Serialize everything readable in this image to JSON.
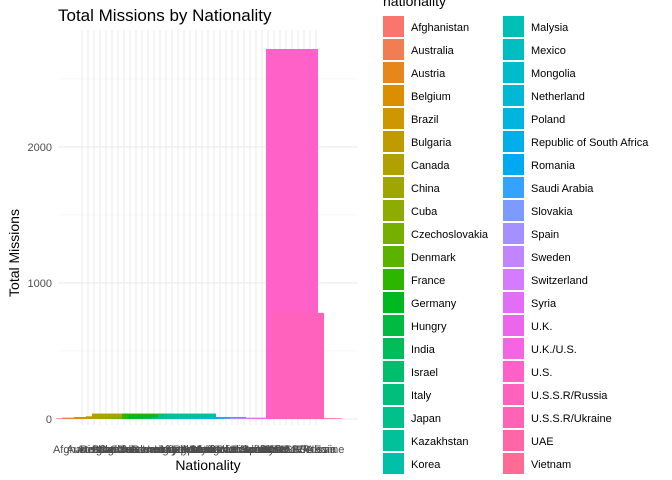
{
  "chart_data": {
    "type": "bar",
    "title": "Total Missions by Nationality",
    "xlabel": "Nationality",
    "ylabel": "Total Missions",
    "ylim": [
      0,
      2800
    ],
    "yticks": [
      0,
      1000,
      2000
    ],
    "grid": true,
    "legend": {
      "title": "nationality",
      "position": "right"
    },
    "categories": [
      "Afghanistan",
      "Australia",
      "Austria",
      "Belgium",
      "Brazil",
      "Bulgaria",
      "Canada",
      "China",
      "Cuba",
      "Czechoslovakia",
      "Denmark",
      "France",
      "Germany",
      "Hungry",
      "India",
      "Israel",
      "Italy",
      "Japan",
      "Kazakhstan",
      "Korea",
      "Malysia",
      "Mexico",
      "Mongolia",
      "Netherland",
      "Poland",
      "Republic of South Africa",
      "Romania",
      "Saudi Arabia",
      "Slovakia",
      "Spain",
      "Sweden",
      "Switzerland",
      "Syria",
      "U.K.",
      "U.K./U.S.",
      "U.S.",
      "U.S.S.R/Russia",
      "U.S.S.R/Ukraine",
      "UAE",
      "Vietnam"
    ],
    "values": [
      5,
      10,
      5,
      15,
      5,
      20,
      40,
      25,
      5,
      5,
      5,
      40,
      30,
      5,
      5,
      5,
      15,
      35,
      40,
      5,
      5,
      5,
      5,
      15,
      5,
      5,
      5,
      5,
      5,
      10,
      5,
      5,
      5,
      5,
      5,
      2720,
      780,
      5,
      5,
      5
    ],
    "colors": [
      "#F8766D",
      "#F17E53",
      "#E7861B",
      "#DB8E00",
      "#CE9600",
      "#C09B00",
      "#B1A100",
      "#A0A600",
      "#8DAB00",
      "#77AF00",
      "#5BB300",
      "#2CB600",
      "#00B81F",
      "#00BA42",
      "#00BC59",
      "#00BE6C",
      "#00BF7C",
      "#00C08C",
      "#00C19A",
      "#00C0A7",
      "#00BFB4",
      "#00BDC0",
      "#00BBCB",
      "#00B8D6",
      "#00B4E0",
      "#00AFE9",
      "#00A9F1",
      "#35A2FF",
      "#7C9AFF",
      "#A490FF",
      "#C085FF",
      "#D47BFF",
      "#E26EF7",
      "#EC66EB",
      "#F564E3",
      "#FF61C9",
      "#FF62BC",
      "#FF63B6",
      "#FF66A8",
      "#FF6B94"
    ]
  }
}
